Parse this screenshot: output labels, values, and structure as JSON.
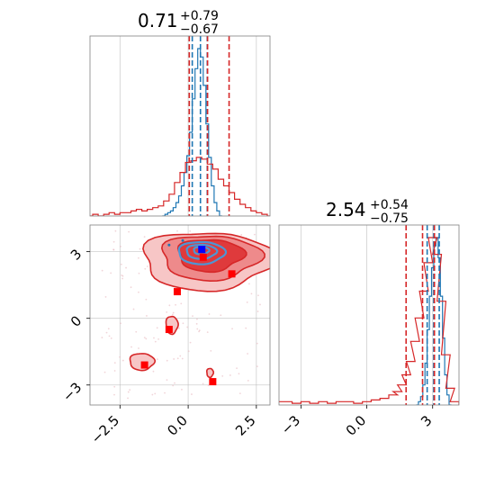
{
  "chart_data": [
    {
      "type": "histogram",
      "panel": "top-left",
      "title": {
        "value": "0.71",
        "upper": "+0.79",
        "lower": "−0.67"
      },
      "xlim": [
        -3.6,
        3.0
      ],
      "x_ticks": [
        -2.5,
        0.0,
        2.5
      ],
      "grid": true,
      "colors": {
        "blue": "#1f77b4",
        "red": "#d62728"
      },
      "series": [
        {
          "color": "#1f77b4",
          "x": [
            -0.9,
            -0.8,
            -0.7,
            -0.6,
            -0.5,
            -0.4,
            -0.3,
            -0.2,
            -0.1,
            0.0,
            0.1,
            0.2,
            0.3,
            0.4,
            0.5,
            0.6,
            0.7,
            0.8,
            0.9,
            1.0,
            1.1,
            1.2
          ],
          "density": [
            0.0,
            0.01,
            0.02,
            0.03,
            0.05,
            0.08,
            0.12,
            0.18,
            0.26,
            0.36,
            0.5,
            0.7,
            0.88,
            1.0,
            0.95,
            0.78,
            0.55,
            0.35,
            0.18,
            0.08,
            0.03,
            0.0
          ]
        },
        {
          "color": "#d62728",
          "x": [
            -3.6,
            -3.4,
            -3.2,
            -3.0,
            -2.8,
            -2.6,
            -2.4,
            -2.2,
            -2.0,
            -1.8,
            -1.6,
            -1.4,
            -1.2,
            -1.0,
            -0.8,
            -0.6,
            -0.4,
            -0.2,
            0.0,
            0.2,
            0.4,
            0.6,
            0.8,
            1.0,
            1.2,
            1.4,
            1.6,
            1.8,
            2.0,
            2.2,
            2.4,
            2.6,
            2.8,
            3.0
          ],
          "density": [
            0.0,
            0.01,
            0.0,
            0.01,
            0.02,
            0.01,
            0.02,
            0.02,
            0.03,
            0.04,
            0.03,
            0.04,
            0.05,
            0.06,
            0.09,
            0.13,
            0.2,
            0.26,
            0.32,
            0.33,
            0.35,
            0.34,
            0.31,
            0.28,
            0.22,
            0.18,
            0.14,
            0.1,
            0.07,
            0.05,
            0.03,
            0.02,
            0.01,
            0.0
          ]
        }
      ],
      "quantile_lines": [
        {
          "color": "#1f77b4",
          "values": [
            0.15,
            0.45,
            0.7
          ]
        },
        {
          "color": "#d62728",
          "values": [
            0.04,
            0.71,
            1.5
          ]
        }
      ]
    },
    {
      "type": "histogram",
      "panel": "bottom-right",
      "title": {
        "value": "2.54",
        "upper": "+0.54",
        "lower": "−0.75"
      },
      "xlim": [
        -4.0,
        4.2
      ],
      "x_ticks": [
        -3,
        0,
        3
      ],
      "grid": true,
      "series": [
        {
          "color": "#1f77b4",
          "x": [
            2.3,
            2.4,
            2.5,
            2.6,
            2.7,
            2.8,
            2.9,
            3.0,
            3.1,
            3.2,
            3.3,
            3.4,
            3.5,
            3.6,
            3.7,
            3.8
          ],
          "density": [
            0.0,
            0.02,
            0.05,
            0.12,
            0.25,
            0.45,
            0.65,
            0.82,
            0.95,
            1.0,
            0.88,
            0.65,
            0.4,
            0.18,
            0.06,
            0.0
          ]
        },
        {
          "color": "#d62728",
          "x": [
            -4.0,
            -3.6,
            -3.2,
            -2.8,
            -2.4,
            -2.0,
            -1.6,
            -1.2,
            -0.8,
            -0.4,
            0.0,
            0.4,
            0.8,
            1.2,
            1.4,
            1.6,
            1.8,
            2.0,
            2.2,
            2.4,
            2.6,
            2.8,
            3.0,
            3.2,
            3.4,
            3.6,
            3.8,
            4.0
          ],
          "density": [
            0.02,
            0.02,
            0.01,
            0.02,
            0.01,
            0.02,
            0.01,
            0.02,
            0.02,
            0.01,
            0.02,
            0.03,
            0.04,
            0.06,
            0.08,
            0.12,
            0.18,
            0.26,
            0.38,
            0.52,
            0.68,
            0.85,
            1.0,
            0.9,
            0.62,
            0.3,
            0.1,
            0.02
          ]
        }
      ],
      "quantile_lines": [
        {
          "color": "#1f77b4",
          "values": [
            2.75,
            3.05,
            3.3
          ]
        },
        {
          "color": "#d62728",
          "values": [
            1.79,
            2.54,
            3.08
          ]
        }
      ]
    },
    {
      "type": "contour",
      "panel": "bottom-left",
      "xlim": [
        -3.6,
        3.0
      ],
      "ylim": [
        -3.9,
        4.2
      ],
      "x_ticks": [
        -2.5,
        0.0,
        2.5
      ],
      "y_ticks": [
        3,
        0,
        -3
      ],
      "grid": true,
      "red_contours": [
        {
          "level": "outer",
          "fill": "#f7c6c6",
          "center": [
            0.7,
            2.6
          ],
          "radii": [
            2.4,
            1.3
          ]
        },
        {
          "level": "middle",
          "fill": "#ee8a8b",
          "center": [
            0.8,
            2.75
          ],
          "radii": [
            1.8,
            1.0
          ]
        },
        {
          "level": "inner",
          "fill": "#df3a3c",
          "center": [
            0.8,
            2.85
          ],
          "radii": [
            1.2,
            0.72
          ]
        },
        {
          "level": "blob",
          "fill": "#f7c6c6",
          "center": [
            -1.7,
            -1.95
          ],
          "radii": [
            0.45,
            0.38
          ]
        },
        {
          "level": "blob",
          "fill": "#f7c6c6",
          "center": [
            -0.6,
            -0.3
          ],
          "radii": [
            0.22,
            0.4
          ]
        },
        {
          "level": "blob",
          "fill": "#f7c6c6",
          "center": [
            0.8,
            -2.45
          ],
          "radii": [
            0.12,
            0.2
          ]
        }
      ],
      "blue_contours": [
        {
          "center": [
            0.48,
            2.95
          ],
          "radii": [
            0.85,
            0.5
          ]
        },
        {
          "center": [
            0.48,
            3.0
          ],
          "radii": [
            0.55,
            0.32
          ]
        },
        {
          "center": [
            0.48,
            3.05
          ],
          "radii": [
            0.28,
            0.17
          ]
        }
      ],
      "red_markers": [
        {
          "x": 0.55,
          "y": 2.75
        },
        {
          "x": 1.6,
          "y": 2.0
        },
        {
          "x": -0.4,
          "y": 1.2
        },
        {
          "x": -0.7,
          "y": -0.5
        },
        {
          "x": -1.6,
          "y": -2.1
        },
        {
          "x": 0.9,
          "y": -2.85
        }
      ],
      "blue_marker": {
        "x": 0.5,
        "y": 3.1
      },
      "blue_points": [
        {
          "x": -0.7,
          "y": 3.3
        },
        {
          "x": -0.2,
          "y": 3.5
        }
      ]
    }
  ]
}
